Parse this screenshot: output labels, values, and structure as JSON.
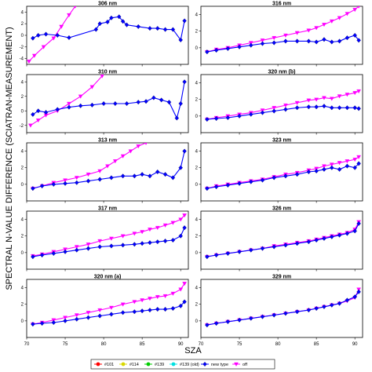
{
  "figure": {
    "ylabel": "SPECTRAL N-VALUE DIFFERENCE (SCIATRAN-MEASUREMENT)",
    "xlabel": "SZA"
  },
  "legend": [
    {
      "label": "#101",
      "color": "#ff0000",
      "marker": "circle"
    },
    {
      "label": "#114",
      "color": "#d8d800",
      "marker": "circle"
    },
    {
      "label": "#139",
      "color": "#00cc00",
      "marker": "circle"
    },
    {
      "label": "#139 (old)",
      "color": "#00e0e0",
      "marker": "circle"
    },
    {
      "label": "new type",
      "color": "#0000ff",
      "marker": "diamond"
    },
    {
      "label": "off",
      "color": "#ff00ff",
      "marker": "triangle-down"
    }
  ],
  "chart_data": [
    {
      "type": "line",
      "title": "306 nm",
      "xlim": [
        70,
        91
      ],
      "ylim": [
        -5,
        5
      ],
      "xticks": [
        70,
        75,
        80,
        85,
        90
      ],
      "yticks": [
        -4,
        -2,
        0,
        2,
        4
      ],
      "series": [
        {
          "name": "new type",
          "x": [
            70.8,
            71.5,
            72.5,
            74,
            75.5,
            79,
            79.5,
            80.5,
            81,
            82,
            82.5,
            83,
            84.5,
            86,
            87,
            88,
            89,
            90,
            90.5
          ],
          "y": [
            -0.5,
            0,
            0.2,
            0,
            -0.4,
            1,
            2,
            2.3,
            3,
            3.2,
            2.4,
            1.8,
            1.5,
            1.2,
            1.2,
            1,
            1,
            -0.8,
            2.5
          ]
        },
        {
          "name": "off",
          "x": [
            70.3,
            71,
            72.2,
            73.5,
            74.5,
            75.5,
            76.3
          ],
          "y": [
            -4.5,
            -3.5,
            -2,
            -0.5,
            1.5,
            3.5,
            5
          ]
        }
      ]
    },
    {
      "type": "line",
      "title": "316 nm",
      "xlim": [
        70,
        91
      ],
      "ylim": [
        -2,
        5
      ],
      "xticks": [
        70,
        75,
        80,
        85,
        90
      ],
      "yticks": [
        0,
        2,
        4
      ],
      "series": [
        {
          "name": "new type",
          "x": [
            70.8,
            72,
            73.5,
            75,
            76.5,
            78,
            79.5,
            81,
            82.5,
            84,
            85,
            86,
            87,
            88,
            89,
            90,
            90.5
          ],
          "y": [
            -0.5,
            -0.3,
            -0.1,
            0.1,
            0.3,
            0.5,
            0.6,
            0.8,
            0.8,
            0.8,
            0.7,
            1.0,
            0.7,
            0.8,
            1.2,
            1.5,
            0.9
          ]
        },
        {
          "name": "off",
          "x": [
            70.8,
            72,
            73.5,
            75,
            76.5,
            78,
            79.5,
            81,
            82.5,
            84,
            85,
            86,
            87,
            88,
            89,
            90,
            90.5
          ],
          "y": [
            -0.5,
            -0.2,
            0,
            0.3,
            0.6,
            0.9,
            1.2,
            1.5,
            1.8,
            2.1,
            2.4,
            2.8,
            3.2,
            3.6,
            4.1,
            4.6,
            5
          ]
        }
      ]
    },
    {
      "type": "line",
      "title": "310 nm",
      "xlim": [
        70,
        91
      ],
      "ylim": [
        -3,
        5
      ],
      "xticks": [
        70,
        75,
        80,
        85,
        90
      ],
      "yticks": [
        -2,
        0,
        2,
        4
      ],
      "series": [
        {
          "name": "new type",
          "x": [
            70.8,
            71.5,
            72.5,
            74,
            75.5,
            77,
            78.5,
            80,
            81.5,
            83,
            84.5,
            85.5,
            86.5,
            87.5,
            88.5,
            89.5,
            90,
            90.5
          ],
          "y": [
            -0.5,
            0,
            -0.2,
            0.2,
            0.5,
            0.7,
            0.8,
            1,
            1,
            1,
            1.2,
            1.3,
            1.8,
            1.5,
            1.2,
            -1,
            1,
            4
          ]
        },
        {
          "name": "off",
          "x": [
            70.5,
            71.5,
            72.5,
            74,
            75.5,
            77,
            78.5,
            79.8
          ],
          "y": [
            -2,
            -1.3,
            -0.6,
            0,
            1,
            2,
            3.3,
            4.8
          ]
        }
      ]
    },
    {
      "type": "line",
      "title": "320 nm (b)",
      "xlim": [
        70,
        91
      ],
      "ylim": [
        -2,
        5
      ],
      "xticks": [
        70,
        75,
        80,
        85,
        90
      ],
      "yticks": [
        0,
        2,
        4
      ],
      "series": [
        {
          "name": "new type",
          "x": [
            70.8,
            72,
            73.5,
            75,
            76.5,
            78,
            79.5,
            81,
            82.5,
            84,
            85,
            86,
            87,
            88,
            89,
            90,
            90.5
          ],
          "y": [
            -0.4,
            -0.3,
            -0.2,
            0,
            0.2,
            0.4,
            0.6,
            0.8,
            1.0,
            1.1,
            1.1,
            1.2,
            1.0,
            1.0,
            1.0,
            1.0,
            0.9
          ]
        },
        {
          "name": "off",
          "x": [
            70.8,
            72,
            73.5,
            75,
            76.5,
            78,
            79.5,
            81,
            82.5,
            84,
            85,
            86,
            87,
            88,
            89,
            90,
            90.5
          ],
          "y": [
            -0.4,
            -0.2,
            0,
            0.2,
            0.4,
            0.7,
            1.0,
            1.3,
            1.6,
            1.9,
            2.0,
            2.2,
            2.1,
            2.4,
            2.6,
            2.8,
            3.0
          ]
        }
      ]
    },
    {
      "type": "line",
      "title": "313 nm",
      "xlim": [
        70,
        91
      ],
      "ylim": [
        -2,
        5
      ],
      "xticks": [
        70,
        75,
        80,
        85,
        90
      ],
      "yticks": [
        0,
        2,
        4
      ],
      "series": [
        {
          "name": "new type",
          "x": [
            70.8,
            72,
            73.5,
            75,
            76.5,
            78,
            79.5,
            81,
            82.5,
            84,
            85,
            86,
            87,
            88,
            89,
            90,
            90.5
          ],
          "y": [
            -0.5,
            -0.2,
            0,
            0.1,
            0.2,
            0.4,
            0.6,
            0.8,
            1.0,
            1.0,
            1.2,
            1.0,
            1.5,
            1.2,
            0.8,
            2.0,
            4.0
          ]
        },
        {
          "name": "off",
          "x": [
            70.8,
            72,
            73.5,
            75,
            76.5,
            78,
            79.5,
            80.5,
            81.5,
            82.5,
            83.5,
            84.5,
            85.5
          ],
          "y": [
            -0.5,
            -0.2,
            0.2,
            0.5,
            0.8,
            1.2,
            1.6,
            2.2,
            2.8,
            3.4,
            4.0,
            4.6,
            5.0
          ]
        }
      ]
    },
    {
      "type": "line",
      "title": "323 nm",
      "xlim": [
        70,
        91
      ],
      "ylim": [
        -2,
        5
      ],
      "xticks": [
        70,
        75,
        80,
        85,
        90
      ],
      "yticks": [
        0,
        2,
        4
      ],
      "series": [
        {
          "name": "new type",
          "x": [
            70.8,
            72,
            73.5,
            75,
            76.5,
            78,
            79.5,
            81,
            82.5,
            84,
            85,
            86,
            87,
            88,
            89,
            90,
            90.5
          ],
          "y": [
            -0.5,
            -0.3,
            -0.1,
            0.1,
            0.3,
            0.5,
            0.8,
            1.0,
            1.2,
            1.5,
            1.6,
            1.8,
            2.0,
            1.8,
            2.2,
            2.0,
            2.5
          ]
        },
        {
          "name": "off",
          "x": [
            70.8,
            72,
            73.5,
            75,
            76.5,
            78,
            79.5,
            81,
            82.5,
            84,
            85,
            86,
            87,
            88,
            89,
            90,
            90.5
          ],
          "y": [
            -0.5,
            -0.2,
            0,
            0.2,
            0.4,
            0.6,
            0.9,
            1.2,
            1.4,
            1.7,
            1.9,
            2.2,
            2.4,
            2.6,
            2.8,
            3.0,
            3.3
          ]
        }
      ]
    },
    {
      "type": "line",
      "title": "317 nm",
      "xlim": [
        70,
        91
      ],
      "ylim": [
        -2,
        5
      ],
      "xticks": [
        70,
        75,
        80,
        85,
        90
      ],
      "yticks": [
        0,
        2,
        4
      ],
      "series": [
        {
          "name": "new type",
          "x": [
            70.8,
            72,
            73.5,
            75,
            76.5,
            78,
            79.5,
            81,
            82.5,
            84,
            85,
            86,
            87,
            88,
            89,
            90,
            90.5
          ],
          "y": [
            -0.5,
            -0.3,
            -0.1,
            0.1,
            0.3,
            0.5,
            0.7,
            0.8,
            0.9,
            1.0,
            1.1,
            1.2,
            1.3,
            1.4,
            1.5,
            2.0,
            3.0
          ]
        },
        {
          "name": "off",
          "x": [
            70.8,
            72,
            73.5,
            75,
            76.5,
            78,
            79.5,
            81,
            82.5,
            84,
            85,
            86,
            87,
            88,
            89,
            90,
            90.5
          ],
          "y": [
            -0.4,
            -0.2,
            0.1,
            0.4,
            0.7,
            1.0,
            1.4,
            1.7,
            2.0,
            2.3,
            2.5,
            2.8,
            3.0,
            3.3,
            3.6,
            4.0,
            4.5
          ]
        }
      ]
    },
    {
      "type": "line",
      "title": "326 nm",
      "xlim": [
        70,
        91
      ],
      "ylim": [
        -2,
        5
      ],
      "xticks": [
        70,
        75,
        80,
        85,
        90
      ],
      "yticks": [
        0,
        2,
        4
      ],
      "series": [
        {
          "name": "new type",
          "x": [
            70.8,
            72,
            73.5,
            75,
            76.5,
            78,
            79.5,
            81,
            82.5,
            84,
            85,
            86,
            87,
            88,
            89,
            90,
            90.5
          ],
          "y": [
            -0.5,
            -0.3,
            -0.1,
            0.1,
            0.3,
            0.5,
            0.7,
            0.9,
            1.1,
            1.3,
            1.5,
            1.7,
            1.9,
            2.1,
            2.3,
            2.6,
            3.5
          ]
        },
        {
          "name": "off",
          "x": [
            70.8,
            72,
            73.5,
            75,
            76.5,
            78,
            79.5,
            81,
            82.5,
            84,
            85,
            86,
            87,
            88,
            89,
            90,
            90.5
          ],
          "y": [
            -0.5,
            -0.3,
            -0.1,
            0.1,
            0.3,
            0.5,
            0.8,
            1.0,
            1.2,
            1.4,
            1.6,
            1.8,
            2.0,
            2.2,
            2.4,
            2.8,
            3.7
          ]
        }
      ]
    },
    {
      "type": "line",
      "title": "320 nm (a)",
      "xlim": [
        70,
        91
      ],
      "ylim": [
        -2,
        5
      ],
      "xticks": [
        70,
        75,
        80,
        85,
        90
      ],
      "yticks": [
        0,
        2,
        4
      ],
      "series": [
        {
          "name": "new type",
          "x": [
            70.8,
            72,
            73.5,
            75,
            76.5,
            78,
            79.5,
            81,
            82.5,
            84,
            85,
            86,
            87,
            88,
            89,
            90,
            90.5
          ],
          "y": [
            -0.4,
            -0.3,
            -0.2,
            0,
            0.2,
            0.4,
            0.6,
            0.8,
            1.0,
            1.1,
            1.2,
            1.3,
            1.4,
            1.4,
            1.5,
            1.8,
            2.3
          ]
        },
        {
          "name": "off",
          "x": [
            70.8,
            72,
            73.5,
            75,
            76.5,
            78,
            79.5,
            81,
            82.5,
            84,
            85,
            86,
            87,
            88,
            89,
            90,
            90.5
          ],
          "y": [
            -0.4,
            -0.2,
            0.1,
            0.4,
            0.7,
            1.0,
            1.3,
            1.6,
            2.0,
            2.3,
            2.5,
            2.7,
            2.9,
            3.0,
            3.3,
            3.8,
            4.5
          ]
        }
      ]
    },
    {
      "type": "line",
      "title": "329 nm",
      "xlim": [
        70,
        91
      ],
      "ylim": [
        -2,
        5
      ],
      "xticks": [
        70,
        75,
        80,
        85,
        90
      ],
      "yticks": [
        0,
        2,
        4
      ],
      "series": [
        {
          "name": "new type",
          "x": [
            70.8,
            72,
            73.5,
            75,
            76.5,
            78,
            79.5,
            81,
            82.5,
            84,
            85,
            86,
            87,
            88,
            89,
            90,
            90.5
          ],
          "y": [
            -0.5,
            -0.3,
            -0.1,
            0.1,
            0.3,
            0.5,
            0.7,
            0.9,
            1.1,
            1.3,
            1.5,
            1.7,
            1.9,
            2.1,
            2.5,
            2.9,
            3.5
          ]
        },
        {
          "name": "off",
          "x": [
            70.8,
            72,
            73.5,
            75,
            76.5,
            78,
            79.5,
            81,
            82.5,
            84,
            85,
            86,
            87,
            88,
            89,
            90,
            90.5
          ],
          "y": [
            -0.5,
            -0.3,
            -0.1,
            0.1,
            0.3,
            0.5,
            0.7,
            0.9,
            1.1,
            1.3,
            1.5,
            1.7,
            1.9,
            2.1,
            2.4,
            2.8,
            3.8
          ]
        }
      ]
    }
  ]
}
